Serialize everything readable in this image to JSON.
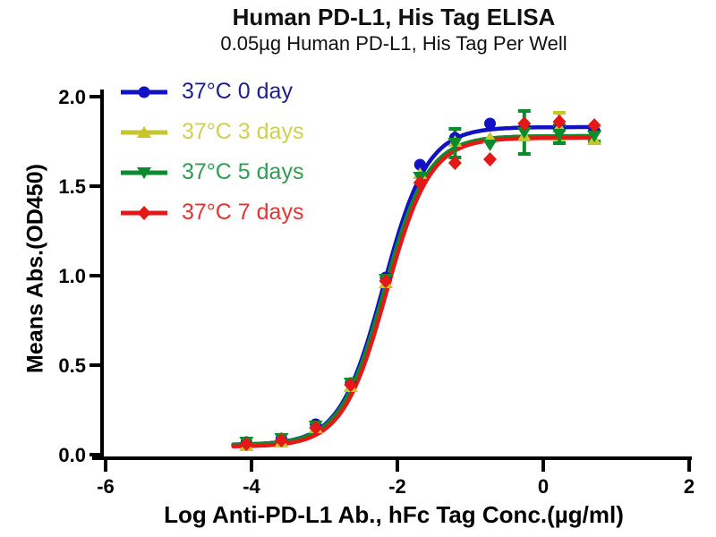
{
  "chart_data": {
    "type": "line",
    "title": "Human PD-L1, His Tag ELISA",
    "subtitle": "0.05µg Human PD-L1, His Tag Per Well",
    "xlabel": "Log Anti-PD-L1 Ab., hFc Tag Conc.(µg/ml)",
    "ylabel": "Means Abs.(OD450)",
    "xlim": [
      -6,
      2
    ],
    "ylim": [
      0.0,
      2.0
    ],
    "x_ticks": [
      -6,
      -4,
      -2,
      0,
      2
    ],
    "x_tick_labels": [
      "-6",
      "-4",
      "-2",
      "0",
      "2"
    ],
    "y_ticks": [
      0.0,
      0.5,
      1.0,
      1.5,
      2.0
    ],
    "y_tick_labels": [
      "0.0",
      "0.5",
      "1.0",
      "1.5",
      "2.0"
    ],
    "grid": false,
    "legend_position": "top-left-inside",
    "x": [
      -4.07,
      -3.59,
      -3.12,
      -2.64,
      -2.16,
      -1.69,
      -1.21,
      -0.73,
      -0.26,
      0.22,
      0.7
    ],
    "curve_x_range": [
      -4.25,
      0.72
    ],
    "series": [
      {
        "name": "37°C 0 day",
        "marker": "circle",
        "color": "#1212C4",
        "label_color": "#1F1F8F",
        "values": [
          0.07,
          0.09,
          0.17,
          0.4,
          0.99,
          1.62,
          1.77,
          1.85,
          1.83,
          1.82,
          1.81
        ],
        "errors": [
          0,
          0,
          0,
          0,
          0,
          0,
          0,
          0,
          0,
          0,
          0
        ],
        "fit_4pl": {
          "bottom": 0.055,
          "top": 1.83,
          "logEC50": -2.19,
          "hill": 1.45
        }
      },
      {
        "name": "37°C 3 days",
        "marker": "triangle-up",
        "color": "#C6C62A",
        "label_color": "#CFCF52",
        "values": [
          0.05,
          0.07,
          0.15,
          0.38,
          0.96,
          1.57,
          1.75,
          1.77,
          1.78,
          1.83,
          1.76
        ],
        "errors": [
          0,
          0,
          0,
          0,
          0,
          0,
          0,
          0,
          0,
          0.08,
          0
        ],
        "fit_4pl": {
          "bottom": 0.05,
          "top": 1.78,
          "logEC50": -2.18,
          "hill": 1.45
        }
      },
      {
        "name": "37°C 5 days",
        "marker": "triangle-down",
        "color": "#0C8A2E",
        "label_color": "#2F9E52",
        "values": [
          0.07,
          0.09,
          0.16,
          0.4,
          0.98,
          1.55,
          1.74,
          1.73,
          1.8,
          1.79,
          1.78
        ],
        "errors": [
          0,
          0,
          0,
          0,
          0,
          0,
          0.08,
          0,
          0.12,
          0.05,
          0.03
        ],
        "fit_4pl": {
          "bottom": 0.055,
          "top": 1.78,
          "logEC50": -2.18,
          "hill": 1.45
        }
      },
      {
        "name": "37°C 7 days",
        "marker": "diamond",
        "color": "#E51818",
        "label_color": "#E43535",
        "values": [
          0.06,
          0.08,
          0.15,
          0.39,
          0.97,
          1.52,
          1.63,
          1.65,
          1.85,
          1.86,
          1.84
        ],
        "errors": [
          0,
          0,
          0,
          0,
          0,
          0,
          0,
          0,
          0,
          0,
          0
        ],
        "fit_4pl": {
          "bottom": 0.045,
          "top": 1.77,
          "logEC50": -2.15,
          "hill": 1.45
        }
      }
    ]
  }
}
